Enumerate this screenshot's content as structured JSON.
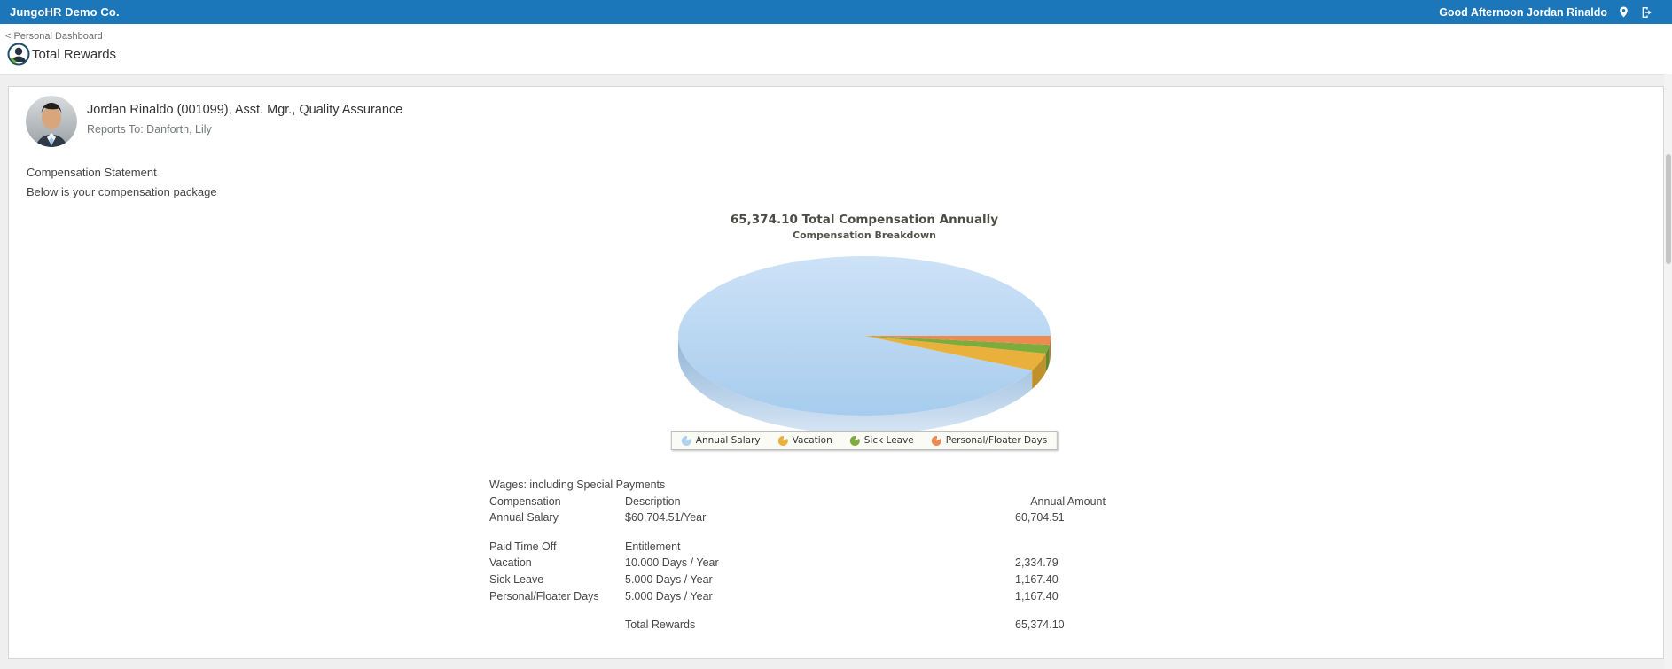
{
  "topbar": {
    "brand": "JungoHR Demo Co.",
    "greeting": "Good Afternoon Jordan Rinaldo",
    "bg_color": "#1b77b9"
  },
  "nav": {
    "breadcrumb": "< Personal Dashboard",
    "page_title": "Total Rewards"
  },
  "employee": {
    "name": "Jordan Rinaldo (001099), Asst. Mgr., Quality Assurance",
    "reports_to": "Reports To: Danforth, Lily"
  },
  "statement": {
    "heading": "Compensation Statement",
    "subheading": "Below is your compensation package"
  },
  "chart_data": {
    "type": "pie",
    "style": "3d",
    "title": "65,374.10 Total Compensation Annually",
    "subtitle": "Compensation Breakdown",
    "total_annual": 65374.1,
    "legend_position": "bottom",
    "series": [
      {
        "name": "Annual Salary",
        "value": 60704.51,
        "color": "#aed2f1",
        "side_color": "#8fb4d7"
      },
      {
        "name": "Vacation",
        "value": 2334.79,
        "color": "#e9b13c",
        "side_color": "#c0902b"
      },
      {
        "name": "Sick Leave",
        "value": 1167.4,
        "color": "#7dac3d",
        "side_color": "#5f8a2c"
      },
      {
        "name": "Personal/Floater Days",
        "value": 1167.4,
        "color": "#ed8a50",
        "side_color": "#c96f3a"
      }
    ]
  },
  "table": {
    "section_title": "Wages: including Special Payments",
    "rows": [
      {
        "cells": [
          "Compensation",
          "Description",
          "Annual Amount"
        ],
        "is_header": true
      },
      {
        "cells": [
          "Annual Salary",
          "$60,704.51/Year",
          "60,704.51"
        ]
      },
      {
        "spacer": true
      },
      {
        "cells": [
          "Paid Time Off",
          "Entitlement",
          ""
        ]
      },
      {
        "cells": [
          "Vacation",
          "10.000 Days / Year",
          "2,334.79"
        ]
      },
      {
        "cells": [
          "Sick Leave",
          "5.000 Days / Year",
          "1,167.40"
        ]
      },
      {
        "cells": [
          "Personal/Floater Days",
          "5.000 Days / Year",
          "1,167.40"
        ]
      },
      {
        "spacer": true
      },
      {
        "cells": [
          "",
          "Total Rewards",
          "65,374.10"
        ]
      }
    ]
  }
}
